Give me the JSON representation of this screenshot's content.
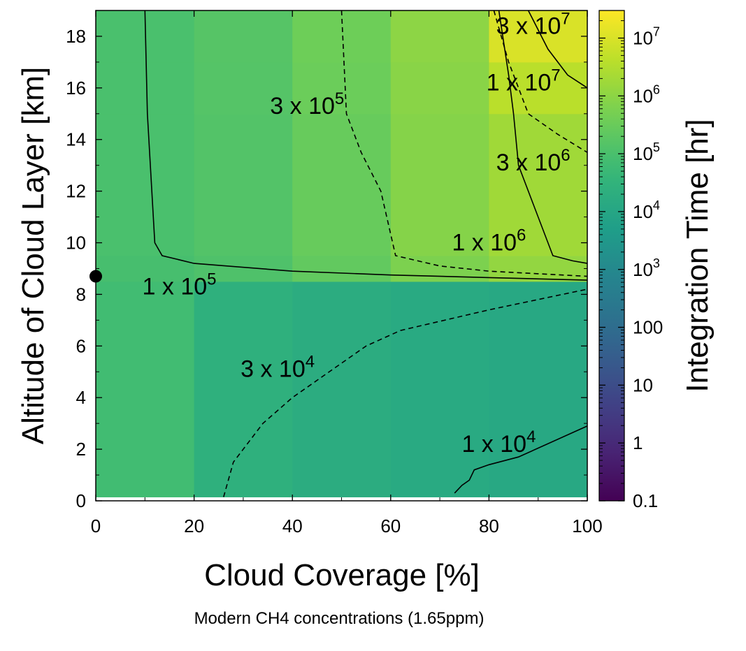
{
  "chart_data": {
    "type": "heatmap",
    "caption": "Modern CH4 concentrations (1.65ppm)",
    "xlabel": "Cloud Coverage [%]",
    "ylabel": "Altitude of Cloud Layer [km]",
    "colorbar_label": "Integration Time [hr]",
    "colormap": "viridis",
    "colorbar_scale": "log",
    "colorbar_range": [
      0.1,
      30000000
    ],
    "xlim": [
      0,
      100
    ],
    "ylim": [
      0,
      19
    ],
    "x_ticks": [
      "0",
      "20",
      "40",
      "60",
      "80",
      "100"
    ],
    "y_ticks": [
      "0",
      "2",
      "4",
      "6",
      "8",
      "10",
      "12",
      "14",
      "16",
      "18"
    ],
    "colorbar_ticks": [
      {
        "value": 0.1,
        "label": "0.1"
      },
      {
        "value": 1,
        "label": "1"
      },
      {
        "value": 10,
        "label": "10"
      },
      {
        "value": 100,
        "label": "100"
      },
      {
        "value": 1000,
        "label": "10",
        "exp": "3"
      },
      {
        "value": 10000,
        "label": "10",
        "exp": "4"
      },
      {
        "value": 100000,
        "label": "10",
        "exp": "5"
      },
      {
        "value": 1000000,
        "label": "10",
        "exp": "6"
      },
      {
        "value": 10000000,
        "label": "10",
        "exp": "7"
      }
    ],
    "x_edges": [
      0,
      20,
      40,
      60,
      80,
      100
    ],
    "y_edges": [
      0.15,
      8.5,
      9.5,
      15,
      17,
      19
    ],
    "grid_values": [
      [
        70000,
        25000,
        18000,
        14000,
        12000
      ],
      [
        90000,
        120000,
        250000,
        600000,
        1200000
      ],
      [
        100000,
        140000,
        300000,
        800000,
        1800000
      ],
      [
        100000,
        150000,
        350000,
        900000,
        4000000
      ],
      [
        100000,
        160000,
        380000,
        1000000,
        10000000
      ]
    ],
    "contours": [
      {
        "level": "1 x 10^5",
        "style": "solid",
        "points": [
          [
            10,
            19
          ],
          [
            10.5,
            15
          ],
          [
            12,
            10
          ],
          [
            13.5,
            9.5
          ],
          [
            20,
            9.2
          ],
          [
            40,
            8.9
          ],
          [
            60,
            8.75
          ],
          [
            80,
            8.65
          ],
          [
            100,
            8.55
          ]
        ]
      },
      {
        "level": "3 x 10^5",
        "style": "dashed",
        "points": [
          [
            50,
            19
          ],
          [
            50.5,
            17
          ],
          [
            51,
            15
          ],
          [
            54,
            13.5
          ],
          [
            58,
            12
          ],
          [
            61,
            9.5
          ],
          [
            70,
            9.1
          ],
          [
            80,
            8.9
          ],
          [
            90,
            8.8
          ],
          [
            100,
            8.7
          ]
        ]
      },
      {
        "level": "3 x 10^4",
        "style": "dashed",
        "points": [
          [
            26,
            0.15
          ],
          [
            28,
            1.5
          ],
          [
            34,
            3
          ],
          [
            40,
            4
          ],
          [
            55,
            6
          ],
          [
            62,
            6.6
          ],
          [
            80,
            7.4
          ],
          [
            100,
            8.2
          ]
        ]
      },
      {
        "level": "1 x 10^4",
        "style": "solid",
        "points": [
          [
            73,
            0.3
          ],
          [
            74.5,
            0.6
          ],
          [
            76,
            0.8
          ],
          [
            77,
            1.2
          ],
          [
            80,
            1.4
          ],
          [
            86,
            1.7
          ],
          [
            100,
            2.9
          ]
        ]
      },
      {
        "level": "1 x 10^6",
        "style": "solid",
        "points": [
          [
            82,
            19
          ],
          [
            84,
            16.5
          ],
          [
            85,
            15
          ],
          [
            86,
            13
          ],
          [
            90,
            11
          ],
          [
            93,
            9.5
          ],
          [
            97,
            9.3
          ],
          [
            100,
            9.2
          ]
        ]
      },
      {
        "level": "1 x 10^7",
        "style": "solid",
        "points": [
          [
            88,
            19
          ],
          [
            92,
            17.5
          ],
          [
            96,
            16.5
          ],
          [
            100,
            16
          ]
        ]
      },
      {
        "level": "3 x 10^6",
        "style": "dashed",
        "points": [
          [
            81,
            19
          ],
          [
            84,
            17
          ],
          [
            86,
            16
          ],
          [
            88,
            15
          ],
          [
            94,
            14.2
          ],
          [
            100,
            13.5
          ]
        ]
      }
    ],
    "contour_labels": [
      {
        "base": "1 x 10",
        "exp": "5",
        "x": 17,
        "y": 8.0
      },
      {
        "base": "3 x 10",
        "exp": "5",
        "x": 43,
        "y": 15.0
      },
      {
        "base": "3 x 10",
        "exp": "4",
        "x": 37,
        "y": 4.8
      },
      {
        "base": "1 x 10",
        "exp": "4",
        "x": 82,
        "y": 1.9
      },
      {
        "base": "1 x 10",
        "exp": "6",
        "x": 80,
        "y": 9.7
      },
      {
        "base": "3 x 10",
        "exp": "6",
        "x": 89,
        "y": 12.8
      },
      {
        "base": "1 x 10",
        "exp": "7",
        "x": 87,
        "y": 15.9
      },
      {
        "base": "3 x 10",
        "exp": "7",
        "x": 89,
        "y": 18.1
      }
    ],
    "marker_point": {
      "x": 0,
      "y": 8.7
    }
  }
}
